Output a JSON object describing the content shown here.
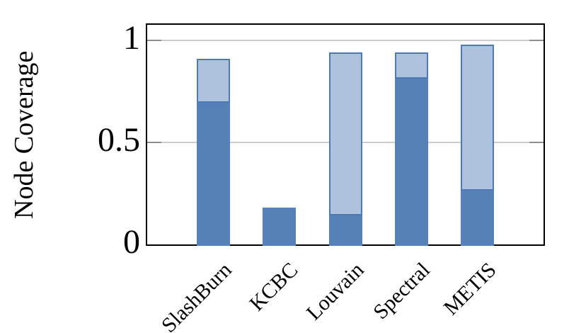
{
  "chart_data": {
    "type": "bar",
    "stacked": true,
    "title": "",
    "ylabel": "Node Coverage",
    "xlabel": "",
    "categories": [
      "SlashBurn",
      "KCBC",
      "Louvain",
      "Spectral",
      "METIS"
    ],
    "series": [
      {
        "name": "dark-blue-segment",
        "color": "#5580b8",
        "values": [
          0.7,
          0.18,
          0.15,
          0.82,
          0.27
        ]
      },
      {
        "name": "light-blue-segment",
        "color": "#aec1dd",
        "border_color": "#4e79b7",
        "values": [
          0.21,
          0.0,
          0.79,
          0.12,
          0.71
        ]
      }
    ],
    "stack_totals": [
      0.91,
      0.18,
      0.94,
      0.94,
      0.98
    ],
    "yticks": [
      0,
      0.5,
      1
    ],
    "ytick_labels": [
      "0",
      "0.5",
      "1"
    ],
    "ylim": [
      0,
      1.08
    ],
    "grid": "horizontal",
    "gridline_color": "#cccccc",
    "tick_color": "#909090",
    "frame_color": "#000000",
    "legend": "none",
    "xtick_rotation_deg": 45
  }
}
